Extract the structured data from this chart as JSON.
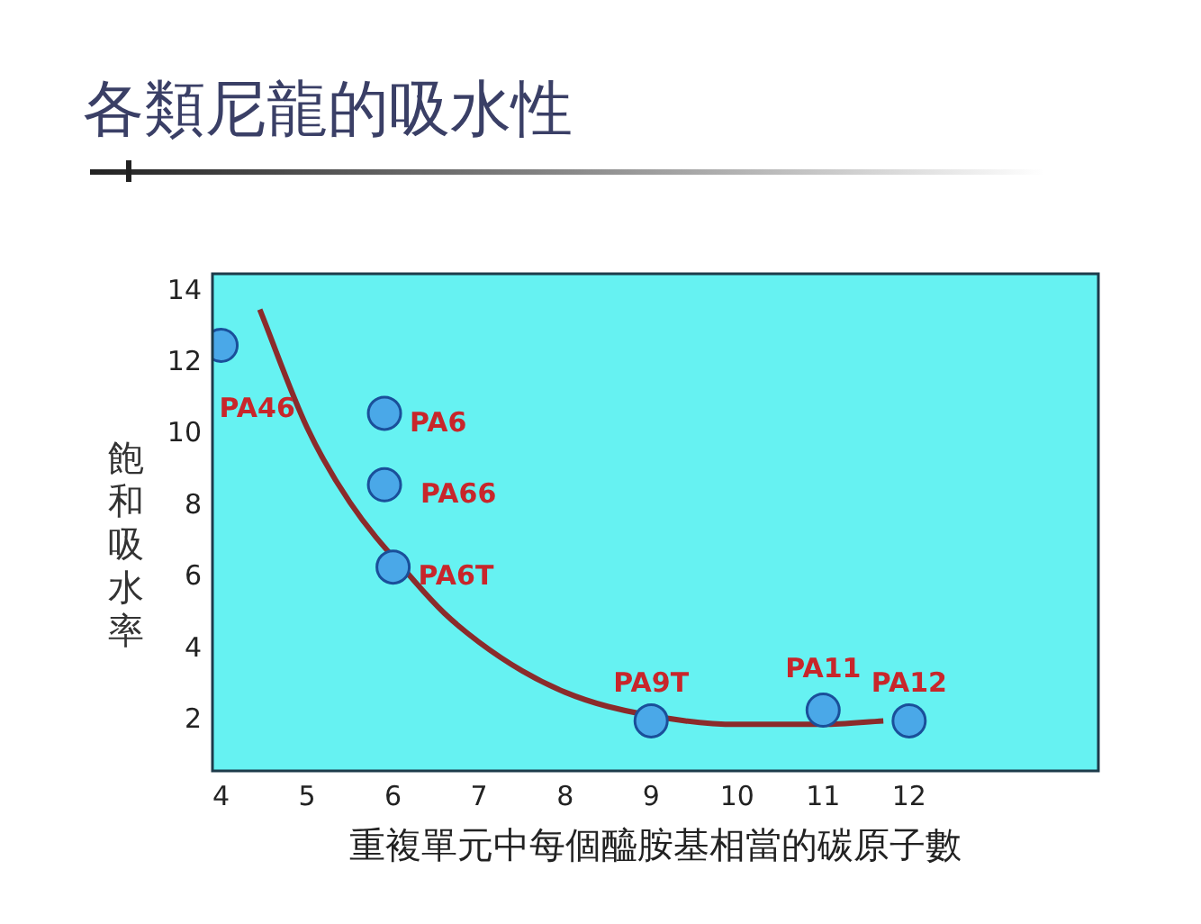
{
  "chart_data": {
    "type": "scatter",
    "title": "各類尼龍的吸水性",
    "xlabel": "重複單元中每個醯胺基相當的碳原子數",
    "ylabel": "飽和吸水率",
    "series": [
      {
        "type": "line",
        "marker": "none",
        "color": "#8b2b2b",
        "x": [
          4.45,
          5,
          5.5,
          6.25,
          6.6,
          7,
          7.5,
          8,
          8.5,
          9.4,
          10,
          11,
          11.7
        ],
        "values": [
          13.5,
          10.2,
          8.1,
          5.9,
          5.0,
          4.2,
          3.4,
          2.8,
          2.4,
          2.0,
          1.9,
          1.9,
          2.0
        ]
      },
      {
        "marker": "circle",
        "color": "#4aa8e8",
        "x": [
          4,
          5.9,
          5.9,
          6,
          9,
          11,
          12
        ],
        "values": [
          12.5,
          10.6,
          8.6,
          6.3,
          2.0,
          2.3,
          2.0
        ]
      }
    ],
    "annotations": [
      {
        "text": "PA46",
        "x": 4,
        "y": 12.5
      },
      {
        "text": "PA6",
        "x": 5.9,
        "y": 10.6
      },
      {
        "text": "PA66",
        "x": 5.9,
        "y": 8.6
      },
      {
        "text": "PA6T",
        "x": 6,
        "y": 6.3
      },
      {
        "text": "PA9T",
        "x": 9,
        "y": 2.0
      },
      {
        "text": "PA11",
        "x": 11,
        "y": 2.3
      },
      {
        "text": "PA12",
        "x": 12,
        "y": 2.0
      }
    ],
    "xlim": [
      3.9,
      14.2
    ],
    "ylim": [
      0.6,
      14.5
    ],
    "xticks": [
      4,
      5,
      6,
      7,
      8,
      9,
      10,
      11,
      12
    ],
    "yticks": [
      2,
      4,
      6,
      8,
      10,
      12,
      14
    ],
    "grid": false,
    "legend": false,
    "line_style": "solid"
  }
}
